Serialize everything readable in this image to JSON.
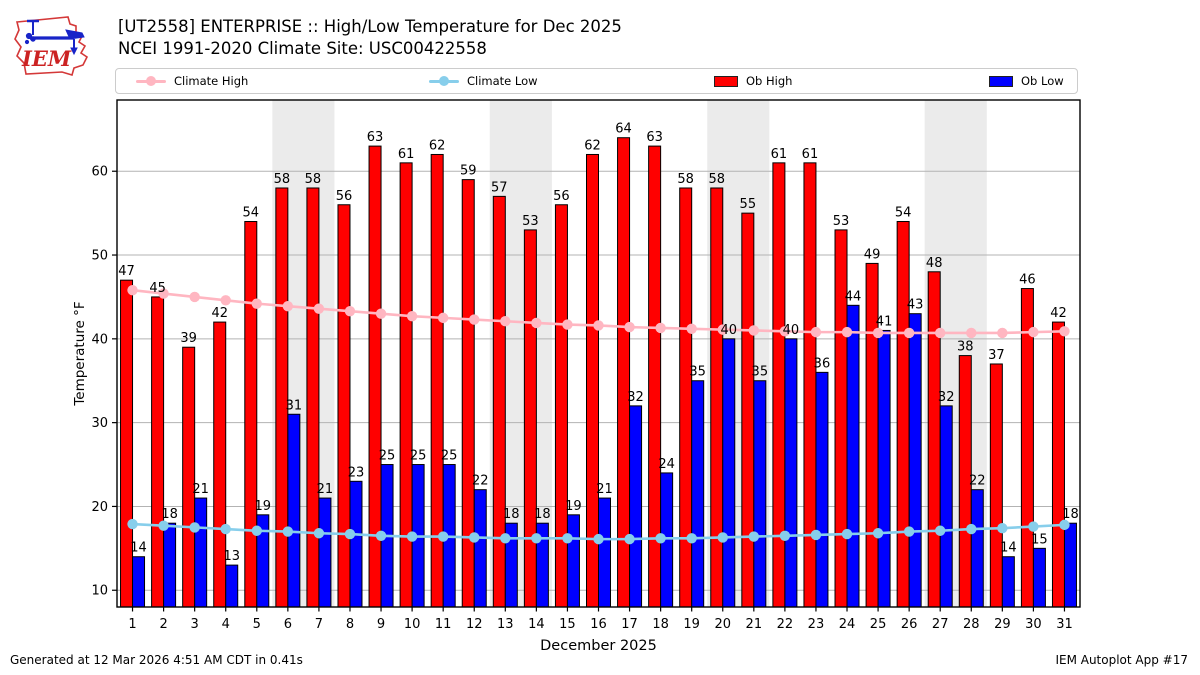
{
  "header": {
    "title_line1": "[UT2558] ENTERPRISE :: High/Low Temperature for Dec 2025",
    "title_line2": "NCEI 1991-2020 Climate Site: USC00422558",
    "logo_text": "IEM"
  },
  "legend": {
    "items": [
      {
        "label": "Climate High",
        "type": "line",
        "color": "#FFB6C1"
      },
      {
        "label": "Climate Low",
        "type": "line",
        "color": "#87CEEB"
      },
      {
        "label": "Ob High",
        "type": "swatch",
        "color": "#FF0000"
      },
      {
        "label": "Ob Low",
        "type": "swatch",
        "color": "#0000FF"
      }
    ]
  },
  "chart_data": {
    "type": "bar",
    "title": "[UT2558] ENTERPRISE :: High/Low Temperature for Dec 2025",
    "subtitle": "NCEI 1991-2020 Climate Site: USC00422558",
    "xlabel": "December 2025",
    "ylabel": "Temperature °F",
    "categories": [
      1,
      2,
      3,
      4,
      5,
      6,
      7,
      8,
      9,
      10,
      11,
      12,
      13,
      14,
      15,
      16,
      17,
      18,
      19,
      20,
      21,
      22,
      23,
      24,
      25,
      26,
      27,
      28,
      29,
      30,
      31
    ],
    "yticks": [
      10,
      20,
      30,
      40,
      50,
      60
    ],
    "ylim": [
      8,
      68.5
    ],
    "grid": true,
    "weekend_bands": [
      [
        6,
        7
      ],
      [
        13,
        14
      ],
      [
        20,
        21
      ],
      [
        27,
        28
      ]
    ],
    "colors": {
      "ob_high": "#FF0000",
      "ob_low": "#0000FF",
      "climate_high": "#FFB6C1",
      "climate_low": "#87CEEB",
      "weekend_band": "#EBEBEB",
      "gridline": "#B3B3B3"
    },
    "series": [
      {
        "name": "Ob High",
        "type": "bar",
        "color": "#FF0000",
        "labeled": true,
        "values": [
          47,
          45,
          39,
          42,
          54,
          58,
          58,
          56,
          63,
          61,
          62,
          59,
          57,
          53,
          56,
          62,
          64,
          63,
          58,
          58,
          55,
          61,
          61,
          53,
          49,
          54,
          48,
          38,
          37,
          46,
          42
        ]
      },
      {
        "name": "Ob Low",
        "type": "bar",
        "color": "#0000FF",
        "labeled": true,
        "values": [
          14,
          18,
          21,
          13,
          19,
          31,
          21,
          23,
          25,
          25,
          25,
          22,
          18,
          18,
          19,
          21,
          32,
          24,
          35,
          40,
          35,
          40,
          36,
          44,
          41,
          43,
          32,
          22,
          14,
          15,
          18
        ]
      },
      {
        "name": "Climate High",
        "type": "line",
        "color": "#FFB6C1",
        "labeled": false,
        "values": [
          45.8,
          45.4,
          45.0,
          44.6,
          44.2,
          43.9,
          43.6,
          43.3,
          43.0,
          42.7,
          42.5,
          42.3,
          42.1,
          41.9,
          41.7,
          41.6,
          41.4,
          41.3,
          41.2,
          41.1,
          41.0,
          40.9,
          40.8,
          40.8,
          40.7,
          40.7,
          40.7,
          40.7,
          40.7,
          40.8,
          40.9
        ]
      },
      {
        "name": "Climate Low",
        "type": "line",
        "color": "#87CEEB",
        "labeled": false,
        "values": [
          17.9,
          17.7,
          17.5,
          17.3,
          17.1,
          17.0,
          16.8,
          16.7,
          16.5,
          16.4,
          16.4,
          16.3,
          16.2,
          16.2,
          16.2,
          16.1,
          16.1,
          16.2,
          16.2,
          16.3,
          16.4,
          16.5,
          16.6,
          16.7,
          16.8,
          17.0,
          17.1,
          17.3,
          17.4,
          17.6,
          17.8
        ]
      }
    ]
  },
  "footer": {
    "generated": "Generated at 12 Mar 2026 4:51 AM CDT in 0.41s",
    "app": "IEM Autoplot App #17"
  }
}
